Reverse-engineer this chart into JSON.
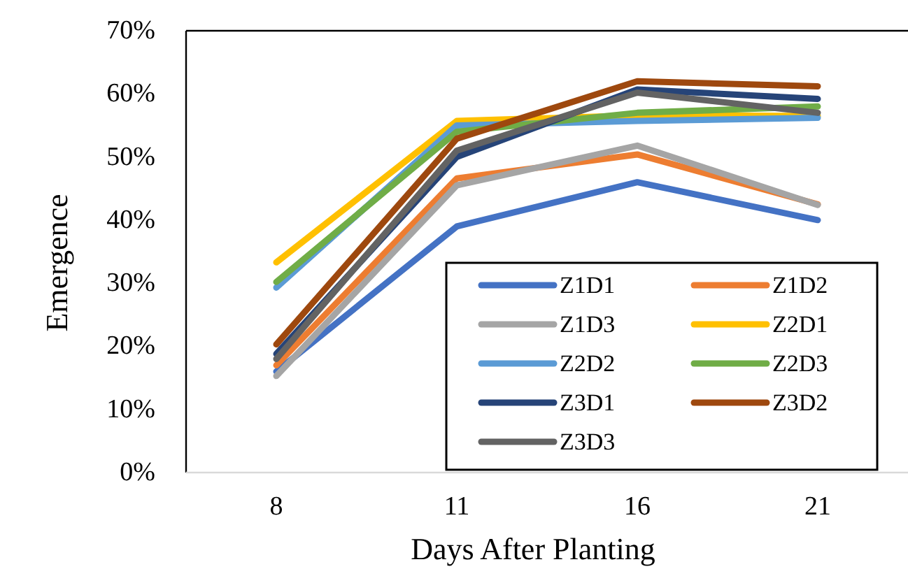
{
  "chart_data": {
    "type": "line",
    "xlabel": "Days After Planting",
    "ylabel": "Emergence",
    "categories": [
      "8",
      "11",
      "16",
      "21"
    ],
    "ylim": [
      0,
      0.7
    ],
    "yticks": [
      {
        "value": 0,
        "label": "0%"
      },
      {
        "value": 0.1,
        "label": "10%"
      },
      {
        "value": 0.2,
        "label": "20%"
      },
      {
        "value": 0.3,
        "label": "30%"
      },
      {
        "value": 0.4,
        "label": "40%"
      },
      {
        "value": 0.5,
        "label": "50%"
      },
      {
        "value": 0.6,
        "label": "60%"
      },
      {
        "value": 0.7,
        "label": "70%"
      }
    ],
    "grid": false,
    "legend": "bottom right",
    "marker": "none",
    "line_style": "solid",
    "series": [
      {
        "name": "Z1D1",
        "color": "#4472c4",
        "values": [
          0.16,
          0.39,
          0.46,
          0.4
        ]
      },
      {
        "name": "Z1D2",
        "color": "#ed7d31",
        "values": [
          0.17,
          0.466,
          0.504,
          0.425
        ]
      },
      {
        "name": "Z1D3",
        "color": "#a5a5a5",
        "values": [
          0.153,
          0.455,
          0.518,
          0.424
        ]
      },
      {
        "name": "Z2D1",
        "color": "#ffc000",
        "values": [
          0.333,
          0.557,
          0.566,
          0.565
        ]
      },
      {
        "name": "Z2D2",
        "color": "#5b9bd5",
        "values": [
          0.293,
          0.55,
          0.557,
          0.562
        ]
      },
      {
        "name": "Z2D3",
        "color": "#70ad47",
        "values": [
          0.302,
          0.54,
          0.57,
          0.58
        ]
      },
      {
        "name": "Z3D1",
        "color": "#264478",
        "values": [
          0.188,
          0.5,
          0.607,
          0.592
        ]
      },
      {
        "name": "Z3D2",
        "color": "#9e480e",
        "values": [
          0.203,
          0.529,
          0.62,
          0.612
        ]
      },
      {
        "name": "Z3D3",
        "color": "#636363",
        "values": [
          0.18,
          0.51,
          0.602,
          0.57
        ]
      }
    ]
  }
}
